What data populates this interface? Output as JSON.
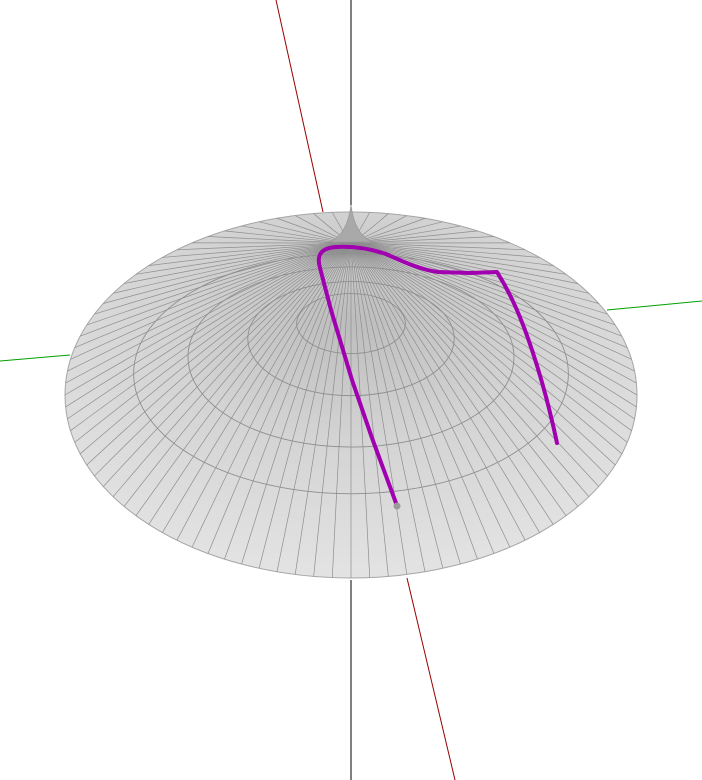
{
  "scene": {
    "background": "#ffffff",
    "surface": {
      "shape": "cusped-cone",
      "fill": "#d6d6d6",
      "mesh_color": "#8e8e8e",
      "rim_color": "#a6a6a6",
      "radial_divisions": 96,
      "concentric_rings": 4
    },
    "axes": {
      "x_color": "#990000",
      "y_color": "#00a000",
      "z_color": "#000000"
    },
    "path": {
      "color": "#a000b0",
      "endpoint_color": "#999999"
    }
  }
}
